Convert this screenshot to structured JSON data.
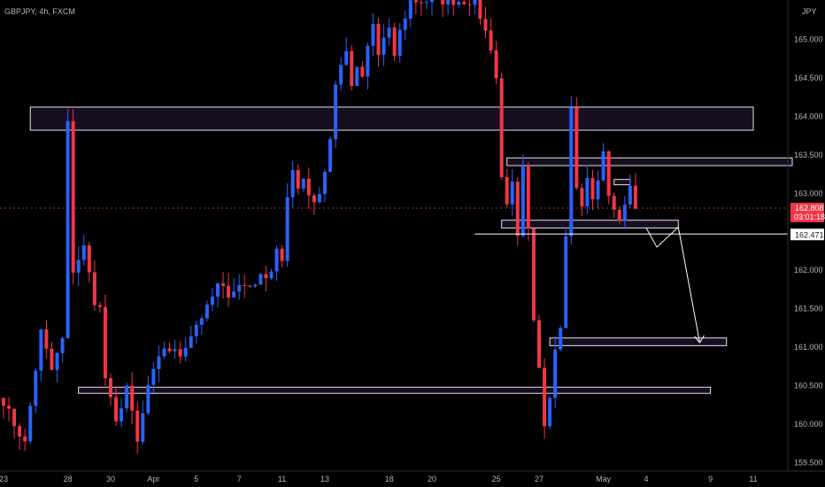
{
  "header": {
    "symbol_line": "GBPJPY, 4h, FXCM"
  },
  "price_axis": {
    "currency": "JPY"
  },
  "current_price": {
    "value": "162.808",
    "countdown": "03:01:18",
    "color": "#f23645"
  },
  "marked_level": {
    "value": "162.471"
  },
  "colors": {
    "up": "#2962ff",
    "down": "#f23645",
    "zone": "#1a0f24",
    "zone_border": "#e8e0f0",
    "background": "#000000"
  },
  "chart_data": {
    "type": "candlestick",
    "title": "GBPJPY, 4h, FXCM",
    "ylim": [
      159.4,
      165.4
    ],
    "y_ticks": [
      "159.500",
      "160.000",
      "160.500",
      "161.000",
      "161.500",
      "162.000",
      "162.500",
      "163.000",
      "163.500",
      "164.000",
      "164.500",
      "165.000"
    ],
    "x_ticks": [
      {
        "label": "23",
        "bar": 0
      },
      {
        "label": "28",
        "bar": 12
      },
      {
        "label": "30",
        "bar": 20
      },
      {
        "label": "Apr",
        "bar": 28
      },
      {
        "label": "5",
        "bar": 36
      },
      {
        "label": "7",
        "bar": 44
      },
      {
        "label": "11",
        "bar": 52
      },
      {
        "label": "13",
        "bar": 60
      },
      {
        "label": "18",
        "bar": 72
      },
      {
        "label": "20",
        "bar": 80
      },
      {
        "label": "25",
        "bar": 92
      },
      {
        "label": "27",
        "bar": 100
      },
      {
        "label": "May",
        "bar": 112
      },
      {
        "label": "4",
        "bar": 120
      },
      {
        "label": "9",
        "bar": 132
      },
      {
        "label": "11",
        "bar": 140
      }
    ],
    "candle_path": [
      [
        0,
        160.3
      ],
      [
        2,
        160.0
      ],
      [
        4,
        159.75
      ],
      [
        7,
        161.2
      ],
      [
        9,
        160.7
      ],
      [
        11,
        161.1
      ],
      [
        12,
        163.9
      ],
      [
        13,
        162.0
      ],
      [
        15,
        162.3
      ],
      [
        17,
        161.6
      ],
      [
        18,
        161.5
      ],
      [
        19,
        160.6
      ],
      [
        21,
        160.0
      ],
      [
        23,
        160.5
      ],
      [
        25,
        159.75
      ],
      [
        27,
        160.5
      ],
      [
        30,
        161.0
      ],
      [
        33,
        160.9
      ],
      [
        36,
        161.3
      ],
      [
        38,
        161.5
      ],
      [
        40,
        161.8
      ],
      [
        42,
        161.7
      ],
      [
        44,
        161.8
      ],
      [
        46,
        161.8
      ],
      [
        48,
        161.9
      ],
      [
        50,
        162.0
      ],
      [
        51,
        162.3
      ],
      [
        52,
        162.1
      ],
      [
        53,
        162.9
      ],
      [
        54,
        163.3
      ],
      [
        55,
        163.1
      ],
      [
        56,
        163.2
      ],
      [
        57,
        163.0
      ],
      [
        58,
        162.9
      ],
      [
        59,
        163.0
      ],
      [
        60,
        163.3
      ],
      [
        61,
        163.7
      ],
      [
        62,
        164.4
      ],
      [
        63,
        164.7
      ],
      [
        64,
        164.8
      ],
      [
        65,
        164.4
      ],
      [
        66,
        164.6
      ],
      [
        67,
        164.5
      ],
      [
        68,
        164.9
      ],
      [
        69,
        165.2
      ],
      [
        70,
        164.8
      ],
      [
        71,
        165.0
      ],
      [
        72,
        165.1
      ],
      [
        73,
        164.8
      ],
      [
        74,
        165.1
      ],
      [
        75,
        165.3
      ],
      [
        76,
        165.5
      ],
      [
        88,
        165.5
      ],
      [
        89,
        165.3
      ],
      [
        91,
        164.9
      ],
      [
        92,
        164.5
      ],
      [
        93,
        163.2
      ],
      [
        94,
        162.9
      ],
      [
        95,
        163.1
      ],
      [
        96,
        162.4
      ],
      [
        97,
        163.3
      ],
      [
        98,
        162.5
      ],
      [
        99,
        161.3
      ],
      [
        100,
        160.7
      ],
      [
        101,
        160.0
      ],
      [
        102,
        160.4
      ],
      [
        103,
        161.0
      ],
      [
        104,
        161.3
      ],
      [
        105,
        162.5
      ],
      [
        106,
        164.1
      ],
      [
        107,
        163.1
      ],
      [
        108,
        162.8
      ],
      [
        109,
        163.2
      ],
      [
        110,
        162.9
      ],
      [
        111,
        163.2
      ],
      [
        112,
        163.5
      ],
      [
        113,
        163.0
      ],
      [
        114,
        162.8
      ],
      [
        115,
        162.6
      ],
      [
        116,
        162.9
      ],
      [
        117,
        163.1
      ],
      [
        118,
        162.8
      ]
    ],
    "zones": [
      {
        "from_bar": 5,
        "to_bar": 140,
        "top": 164.12,
        "bottom": 163.82
      },
      {
        "from_bar": 94,
        "to_bar": 150,
        "top": 163.46,
        "bottom": 163.36
      },
      {
        "from_bar": 114,
        "to_bar": 117,
        "top": 163.18,
        "bottom": 163.12
      },
      {
        "from_bar": 93,
        "to_bar": 126,
        "top": 162.65,
        "bottom": 162.55
      },
      {
        "from_bar": 102,
        "to_bar": 135,
        "top": 161.12,
        "bottom": 161.02
      },
      {
        "from_bar": 14,
        "to_bar": 132,
        "top": 160.48,
        "bottom": 160.4
      }
    ],
    "projection": [
      [
        120,
        162.55
      ],
      [
        122,
        162.3
      ],
      [
        126,
        162.56
      ],
      [
        130,
        161.06
      ]
    ]
  }
}
